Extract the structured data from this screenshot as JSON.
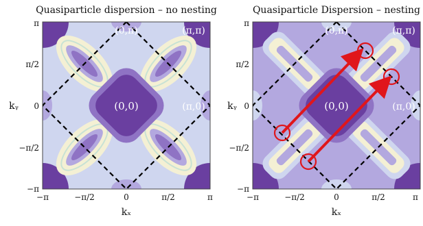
{
  "panels": [
    {
      "title": "Quasiparticle dispersion – no nesting",
      "point_labels": {
        "center": "(0,0)",
        "top": "(0,π)",
        "top_right": "(π,π)",
        "right": "(π,0)"
      },
      "xlabel": "kₓ",
      "ylabel": "kᵧ",
      "x_ticks": [
        "−π",
        "−π/2",
        "0",
        "π/2",
        "π"
      ],
      "y_ticks": [
        "π",
        "π/2",
        "0",
        "−π/2",
        "−π"
      ],
      "nesting_arrows": false
    },
    {
      "title": "Quasiparticle Dispersion – nesting",
      "point_labels": {
        "center": "(0,0)",
        "top": "(0,π)",
        "top_right": "(π,π)",
        "right": "(π,0)"
      },
      "xlabel": "kₓ",
      "ylabel": "kᵧ",
      "x_ticks": [
        "−π",
        "−π/2",
        "0",
        "π/2",
        "π"
      ],
      "y_ticks": [
        "π",
        "π/2",
        "0",
        "−π/2",
        "−π"
      ],
      "nesting_arrows": true
    }
  ],
  "colors": {
    "deep_purple": "#6a3fa0",
    "mid_purple": "#8f73c4",
    "lavender": "#b3a8df",
    "pale_blue": "#cfd6ef",
    "cream": "#f4f0d4",
    "arrow_red": "#e0161b",
    "dashed": "#000000"
  }
}
